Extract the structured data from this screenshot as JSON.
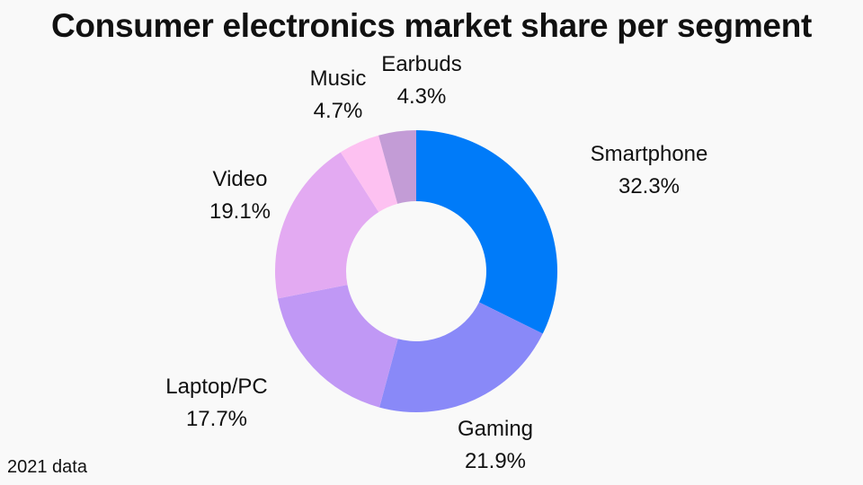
{
  "chart_data": {
    "type": "pie",
    "donut": true,
    "title": "Consumer electronics market share per segment",
    "note": "2021 data",
    "categories": [
      "Smartphone",
      "Gaming",
      "Laptop/PC",
      "Video",
      "Music",
      "Earbuds"
    ],
    "values": [
      32.3,
      21.9,
      17.7,
      19.1,
      4.7,
      4.3
    ],
    "value_labels": [
      "32.3%",
      "21.9%",
      "17.7%",
      "19.1%",
      "4.7%",
      "4.3%"
    ],
    "colors": [
      "#007bf9",
      "#8989f8",
      "#c098f5",
      "#e3aaf2",
      "#fdc1f1",
      "#c39cd6"
    ]
  }
}
